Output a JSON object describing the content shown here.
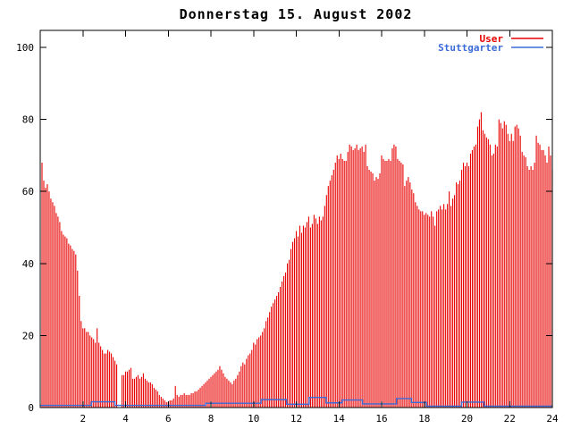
{
  "title": "Donnerstag 15. August 2002",
  "colors": {
    "background": "#ffffff",
    "axis": "#000000",
    "user_series": "#e80000",
    "stuttgarter_series": "#3a6bd8"
  },
  "legend": {
    "position": "top-right",
    "entries": [
      {
        "label": "User",
        "color": "#e80000"
      },
      {
        "label": "Stuttgarter",
        "color": "#3a6bd8"
      }
    ]
  },
  "chart_data": {
    "type": "bar",
    "style": "impulses",
    "title": "Donnerstag 15. August 2002",
    "xlabel": "",
    "ylabel": "",
    "xlim": [
      0,
      24
    ],
    "ylim": [
      0,
      100
    ],
    "x_ticks": [
      2,
      4,
      6,
      8,
      10,
      12,
      14,
      16,
      18,
      20,
      22,
      24
    ],
    "y_ticks": [
      0,
      20,
      40,
      60,
      80,
      100
    ],
    "grid": false,
    "legend_position": "top-right",
    "sample_interval_minutes": 5,
    "first_sample_hour": 0.0833,
    "series": [
      {
        "name": "User",
        "render": "impulses",
        "color": "#e80000",
        "values": [
          68,
          63,
          61,
          62,
          60,
          58,
          57,
          56,
          54,
          53,
          51.5,
          49,
          48,
          47.5,
          47,
          45.5,
          45,
          44,
          43.5,
          42.5,
          38,
          31,
          24,
          22,
          22,
          21,
          21,
          20,
          19.5,
          19,
          18,
          22,
          18,
          17,
          16,
          15,
          15,
          16,
          15.5,
          15,
          14,
          13,
          12,
          0,
          0,
          9,
          9,
          10,
          10,
          10.5,
          11,
          8,
          8,
          8.5,
          9,
          8,
          8.5,
          9.5,
          8,
          7.5,
          7,
          7,
          6.5,
          5.5,
          5,
          4.5,
          3.5,
          3,
          2.5,
          2,
          1.5,
          1.5,
          2,
          2,
          2.5,
          6,
          3.5,
          3,
          3.5,
          3.5,
          4,
          3.5,
          3.5,
          3.5,
          4,
          4,
          4.5,
          4.5,
          5,
          5.5,
          6,
          6.5,
          7,
          7.5,
          8,
          8.5,
          9,
          9.5,
          10,
          10.5,
          11.5,
          10.5,
          9.5,
          8.5,
          8,
          7.5,
          7,
          6.5,
          7.5,
          8,
          9,
          10,
          11.5,
          12.5,
          12,
          13.5,
          14.5,
          15,
          16,
          18,
          17.5,
          19,
          19.5,
          20,
          21,
          22,
          24,
          25,
          26.5,
          28,
          29,
          30,
          31,
          32,
          33.5,
          35,
          36.5,
          37.5,
          40,
          41,
          44,
          46,
          47,
          49,
          47.5,
          50.5,
          48.5,
          50.5,
          50,
          51.5,
          53,
          50,
          51,
          53.5,
          52.5,
          51,
          53,
          52,
          53,
          56,
          59,
          61.5,
          63,
          64.5,
          66,
          68,
          70,
          69,
          70.5,
          69,
          68.5,
          68.5,
          71,
          73,
          72.5,
          71.5,
          72,
          73,
          71.5,
          72,
          72.5,
          71,
          73,
          67,
          66,
          65.5,
          65,
          63,
          64,
          63.5,
          65,
          70,
          69,
          68.5,
          68.5,
          69,
          68.5,
          72,
          73,
          72.5,
          69,
          68.5,
          68,
          67.5,
          61.5,
          63,
          64,
          62.5,
          60.5,
          59.5,
          57,
          56,
          55,
          54.5,
          54.5,
          53.5,
          54,
          53.5,
          53,
          54.5,
          53,
          50.5,
          54.5,
          55,
          56,
          55,
          56.5,
          55,
          56.5,
          60,
          56,
          58,
          59,
          62.5,
          62,
          63,
          66,
          68,
          67,
          68,
          67,
          70.5,
          71.5,
          72.5,
          73,
          78,
          80,
          82,
          77,
          76,
          75,
          74.5,
          73,
          70,
          70.5,
          73,
          72.5,
          80,
          79,
          77.5,
          79.5,
          78.5,
          76,
          74,
          76,
          74,
          78,
          78.5,
          77.5,
          75.5,
          71,
          70,
          69.5,
          67,
          66,
          67,
          66,
          68,
          75.5,
          73.5,
          73,
          71.5,
          71.5,
          70,
          68,
          72.5,
          70,
          66
        ]
      },
      {
        "name": "Stuttgarter",
        "render": "steps",
        "color": "#3a6bd8",
        "step_segments": [
          [
            0.0,
            0.6
          ],
          [
            2.4,
            1.6
          ],
          [
            3.5,
            0.6
          ],
          [
            7.75,
            1.2
          ],
          [
            10.35,
            2.2
          ],
          [
            11.55,
            0.9
          ],
          [
            12.6,
            2.8
          ],
          [
            13.4,
            1.3
          ],
          [
            14.15,
            2.1
          ],
          [
            15.1,
            1.0
          ],
          [
            16.7,
            2.5
          ],
          [
            17.4,
            1.4
          ],
          [
            18.1,
            0.4
          ],
          [
            19.75,
            1.5
          ],
          [
            20.8,
            0.4
          ]
        ]
      }
    ]
  }
}
